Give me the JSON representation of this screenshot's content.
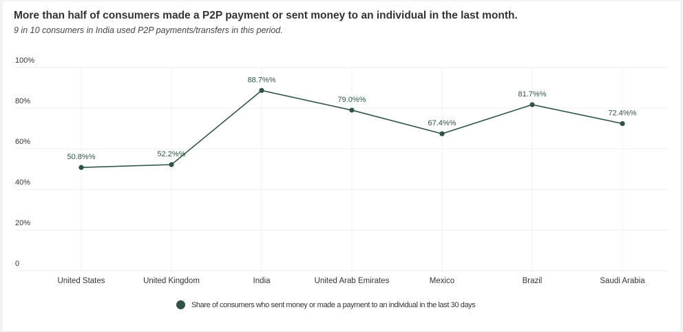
{
  "chart_data": {
    "type": "line",
    "title": "More than half of consumers made a P2P payment or sent money to an individual in the last month.",
    "subtitle": "9 in 10 consumers in India used P2P payments/transfers in this period.",
    "categories": [
      "United States",
      "United Kingdom",
      "India",
      "United Arab Emirates",
      "Mexico",
      "Brazil",
      "Saudi Arabia"
    ],
    "series": [
      {
        "name": "Share of consumers who sent money or made a payment to an individual in the last 30 days",
        "values": [
          50.8,
          52.2,
          88.7,
          79.0,
          67.4,
          81.7,
          72.4
        ],
        "data_labels": [
          "50.8%%",
          "52.2%%",
          "88.7%%",
          "79.0%%",
          "67.4%%",
          "81.7%%",
          "72.4%%"
        ],
        "color": "#2f5443"
      }
    ],
    "yticks": [
      "0",
      "20%",
      "40%",
      "60%",
      "80%",
      "100%"
    ],
    "ylim": [
      0,
      100
    ],
    "grid": true,
    "legend": "bottom"
  }
}
